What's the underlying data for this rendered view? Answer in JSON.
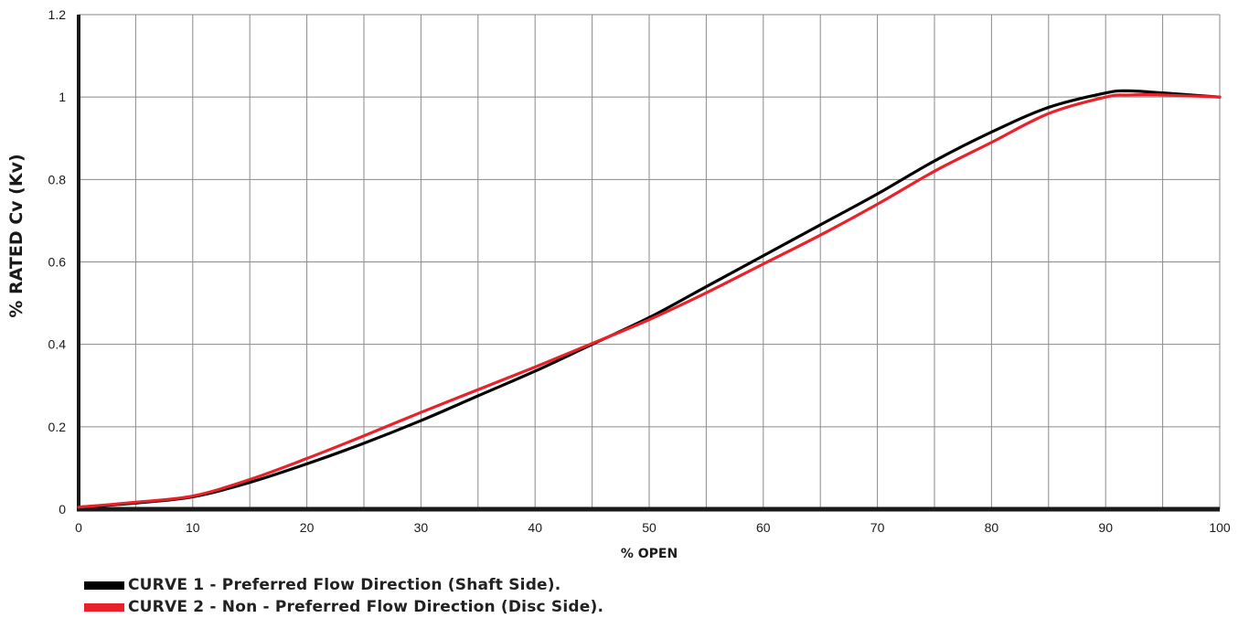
{
  "chart_data": {
    "type": "line",
    "title": "",
    "xlabel": "% OPEN",
    "ylabel": "% RATED Cv (Kv)",
    "xlim": [
      0,
      100
    ],
    "ylim": [
      0,
      1.2
    ],
    "x_ticks": [
      0,
      10,
      20,
      30,
      40,
      50,
      60,
      70,
      80,
      90,
      100
    ],
    "y_ticks": [
      0,
      0.2,
      0.4,
      0.6,
      0.8,
      1,
      1.2
    ],
    "grid": true,
    "legend_position": "bottom-left",
    "series": [
      {
        "name": "CURVE 1 - Preferred Flow Direction (Shaft Side).",
        "color": "#000000",
        "x": [
          0,
          5,
          10,
          15,
          20,
          25,
          30,
          35,
          40,
          45,
          50,
          55,
          60,
          65,
          70,
          75,
          80,
          85,
          90,
          92,
          95,
          100
        ],
        "y": [
          0.005,
          0.015,
          0.03,
          0.065,
          0.11,
          0.16,
          0.215,
          0.275,
          0.335,
          0.4,
          0.465,
          0.54,
          0.615,
          0.69,
          0.765,
          0.845,
          0.915,
          0.975,
          1.01,
          1.015,
          1.01,
          1.0
        ]
      },
      {
        "name": "CURVE 2 - Non - Preferred Flow Direction (Disc Side).",
        "color": "#e8212b",
        "x": [
          0,
          5,
          10,
          15,
          20,
          25,
          30,
          35,
          40,
          45,
          50,
          55,
          60,
          65,
          70,
          75,
          80,
          85,
          90,
          92,
          95,
          100
        ],
        "y": [
          0.005,
          0.017,
          0.032,
          0.072,
          0.123,
          0.178,
          0.235,
          0.29,
          0.345,
          0.402,
          0.46,
          0.525,
          0.595,
          0.665,
          0.74,
          0.82,
          0.89,
          0.96,
          1.0,
          1.005,
          1.005,
          1.0
        ]
      }
    ]
  }
}
